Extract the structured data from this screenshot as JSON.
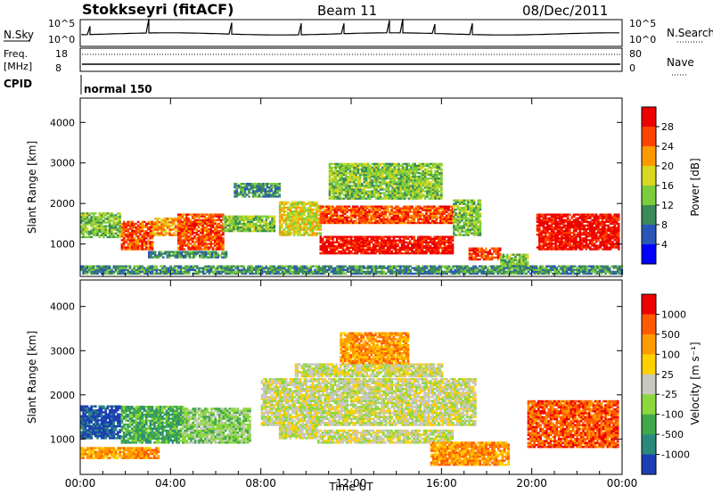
{
  "header": {
    "station": "Stokkseyri (fitACF)",
    "beam": "Beam 11",
    "date": "08/Dec/2011"
  },
  "top_panel": {
    "nsky_label": "N.Sky",
    "nsearch_label": "N.Search",
    "nsky_ticks": [
      "10^5",
      "10^0"
    ],
    "nsearch_ticks": [
      "10^5",
      "10^0"
    ],
    "freq_label_1": "Freq.",
    "freq_label_2": "[MHz]",
    "nave_label": "Nave",
    "freq_ticks": [
      "18",
      "8"
    ],
    "nave_ticks": [
      "80",
      "0"
    ],
    "cpid_label": "CPID",
    "cpid_value": "normal 150"
  },
  "chart_data": [
    {
      "type": "heatmap",
      "name": "power",
      "ylabel": "Slant Range [km]",
      "yticks": [
        "1000",
        "2000",
        "3000",
        "4000"
      ],
      "ylim": [
        200,
        4600
      ],
      "xlim": [
        0,
        24
      ],
      "colorbar": {
        "label": "Power [dB]",
        "ticks": [
          "4",
          "8",
          "12",
          "16",
          "20",
          "24",
          "28"
        ],
        "colors": [
          "#0000ff",
          "#2a56b8",
          "#3a8a5a",
          "#7ccd3c",
          "#d8d820",
          "#ff9900",
          "#ff4400",
          "#ee0000"
        ]
      },
      "regions": [
        {
          "t": [
            0.0,
            1.8
          ],
          "r": [
            1150,
            1750
          ],
          "level": 3
        },
        {
          "t": [
            1.8,
            3.2
          ],
          "r": [
            850,
            1550
          ],
          "level": 6
        },
        {
          "t": [
            3.2,
            4.3
          ],
          "r": [
            1200,
            1650
          ],
          "level": 5
        },
        {
          "t": [
            4.3,
            6.3
          ],
          "r": [
            850,
            1750
          ],
          "level": 6
        },
        {
          "t": [
            3.0,
            6.5
          ],
          "r": [
            650,
            800
          ],
          "level": 2
        },
        {
          "t": [
            6.3,
            8.6
          ],
          "r": [
            1300,
            1700
          ],
          "level": 3
        },
        {
          "t": [
            6.8,
            8.8
          ],
          "r": [
            2150,
            2500
          ],
          "level": 2
        },
        {
          "t": [
            8.8,
            10.6
          ],
          "r": [
            1200,
            2050
          ],
          "level": 4
        },
        {
          "t": [
            10.6,
            16.5
          ],
          "r": [
            750,
            1200
          ],
          "level": 7
        },
        {
          "t": [
            10.6,
            16.5
          ],
          "r": [
            1500,
            1950
          ],
          "level": 6
        },
        {
          "t": [
            11.0,
            16.0
          ],
          "r": [
            2100,
            3000
          ],
          "level": 3
        },
        {
          "t": [
            16.5,
            17.7
          ],
          "r": [
            1200,
            2100
          ],
          "level": 3
        },
        {
          "t": [
            17.2,
            18.6
          ],
          "r": [
            600,
            900
          ],
          "level": 6
        },
        {
          "t": [
            18.6,
            19.8
          ],
          "r": [
            400,
            750
          ],
          "level": 3
        },
        {
          "t": [
            20.2,
            23.8
          ],
          "r": [
            850,
            1750
          ],
          "level": 7
        },
        {
          "t": [
            0.0,
            24.0
          ],
          "r": [
            250,
            450
          ],
          "level": 2
        }
      ]
    },
    {
      "type": "heatmap",
      "name": "velocity",
      "ylabel": "Slant Range [km]",
      "xlabel": "Time UT",
      "xticks": [
        "00:00",
        "04:00",
        "08:00",
        "12:00",
        "16:00",
        "20:00",
        "00:00"
      ],
      "yticks": [
        "1000",
        "2000",
        "3000",
        "4000"
      ],
      "ylim": [
        200,
        4600
      ],
      "xlim": [
        0,
        24
      ],
      "colorbar": {
        "label": "Velocity [m s⁻¹]",
        "ticks": [
          "1000",
          "500",
          "100",
          "25",
          "-25",
          "-100",
          "-500",
          "-1000"
        ],
        "colors": [
          "#1d3fb5",
          "#2a8a7a",
          "#3fa84a",
          "#8cd83c",
          "#c8c8c0",
          "#ffd000",
          "#ff9a00",
          "#ff5a00",
          "#ee0000"
        ]
      },
      "regions": [
        {
          "t": [
            0.0,
            1.8
          ],
          "r": [
            1000,
            1750
          ],
          "level": 0
        },
        {
          "t": [
            1.8,
            4.5
          ],
          "r": [
            900,
            1750
          ],
          "level": 2
        },
        {
          "t": [
            4.5,
            7.5
          ],
          "r": [
            900,
            1700
          ],
          "level": 3
        },
        {
          "t": [
            0.0,
            3.5
          ],
          "r": [
            550,
            800
          ],
          "level": 6
        },
        {
          "t": [
            8.0,
            17.5
          ],
          "r": [
            1300,
            2350
          ],
          "level": 4
        },
        {
          "t": [
            9.5,
            16.0
          ],
          "r": [
            2400,
            2700
          ],
          "level": 4
        },
        {
          "t": [
            8.8,
            10.5
          ],
          "r": [
            1000,
            1300
          ],
          "level": 4
        },
        {
          "t": [
            10.5,
            16.5
          ],
          "r": [
            900,
            1200
          ],
          "level": 4
        },
        {
          "t": [
            15.5,
            19.0
          ],
          "r": [
            400,
            900
          ],
          "level": 6
        },
        {
          "t": [
            19.8,
            23.8
          ],
          "r": [
            800,
            1850
          ],
          "level": 7
        },
        {
          "t": [
            11.5,
            14.5
          ],
          "r": [
            2700,
            3400
          ],
          "level": 6
        }
      ]
    }
  ]
}
